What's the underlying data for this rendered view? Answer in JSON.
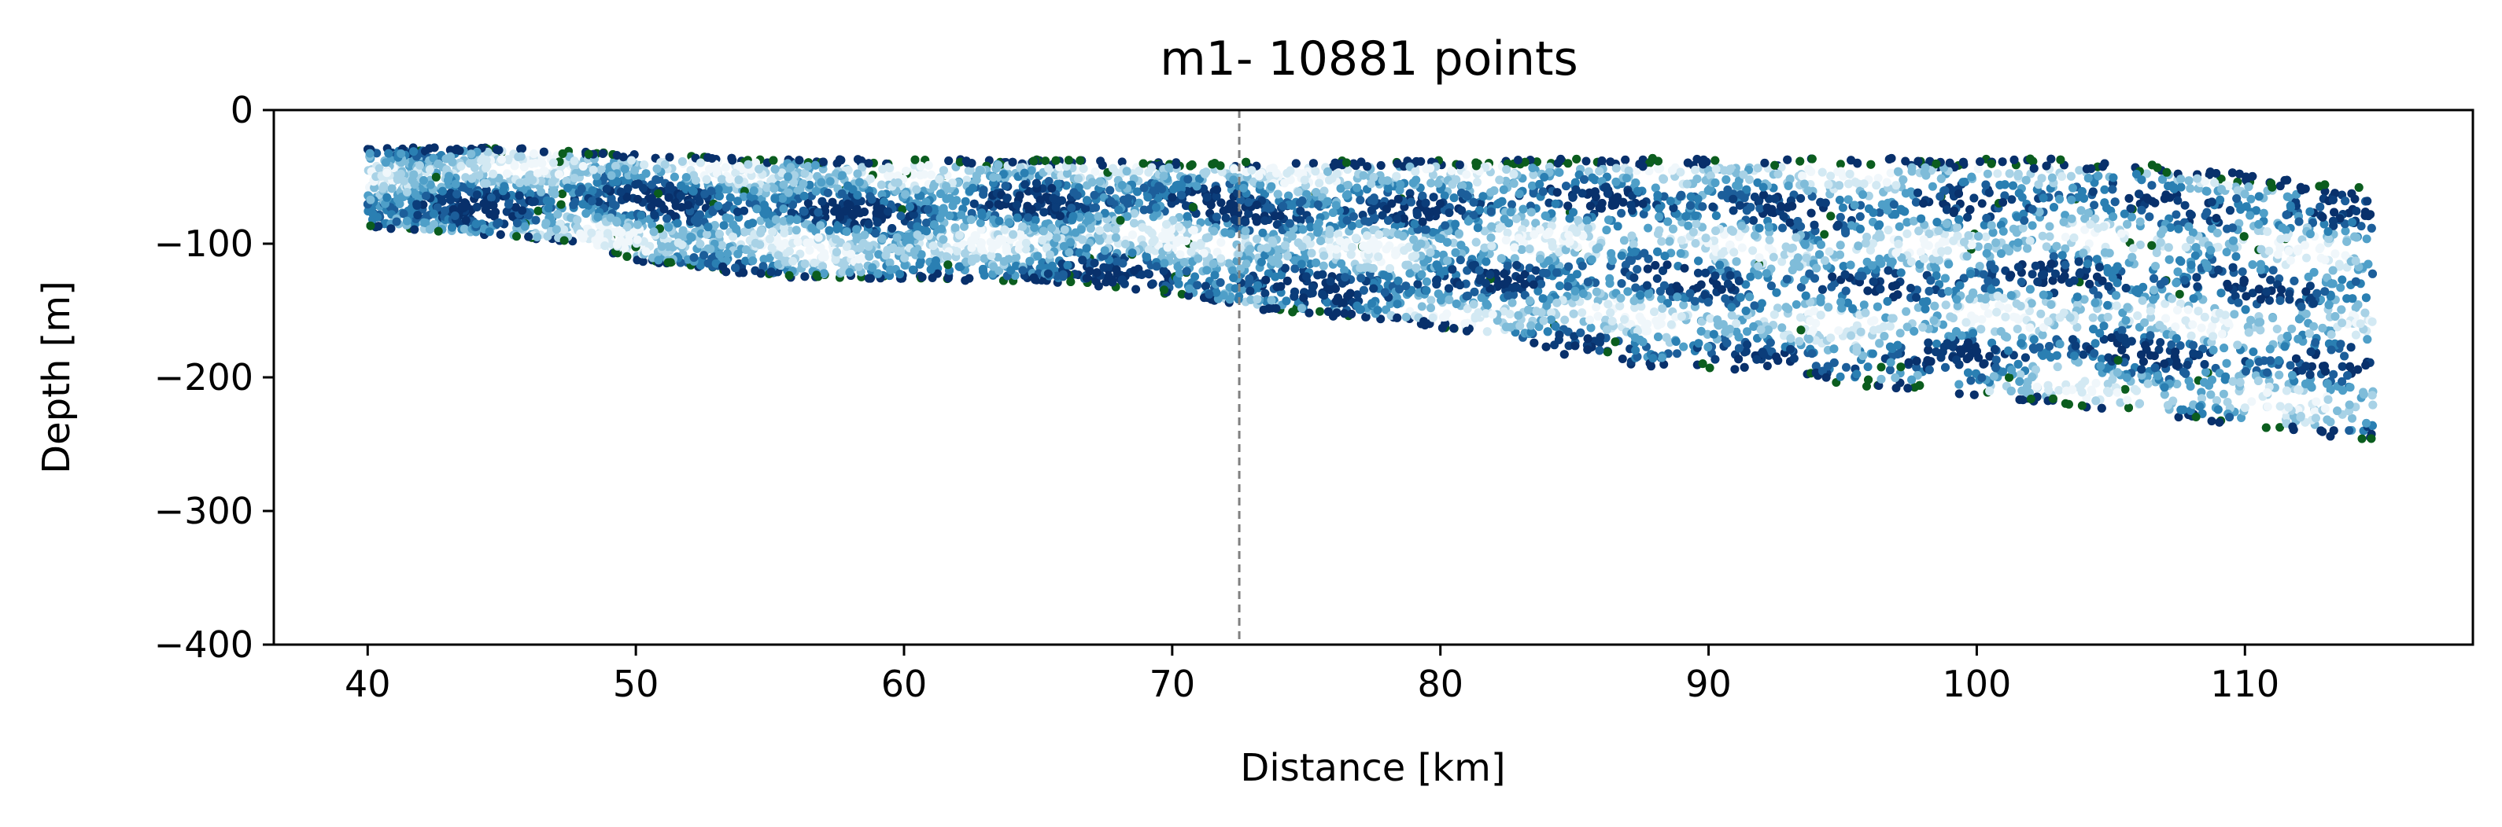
{
  "chart_data": {
    "type": "scatter",
    "title": "m1- 10881 points",
    "xlabel": "Distance [km]",
    "ylabel": "Depth [m]",
    "xlim": [
      36.5,
      118.5
    ],
    "ylim": [
      -400,
      0
    ],
    "x_ticks": [
      40,
      50,
      60,
      70,
      80,
      90,
      100,
      110
    ],
    "y_ticks": [
      0,
      -100,
      -200,
      -300,
      -400
    ],
    "x_tick_labels": [
      "40",
      "50",
      "60",
      "70",
      "80",
      "90",
      "100",
      "110"
    ],
    "y_tick_labels": [
      "0",
      "−100",
      "−200",
      "−300",
      "−400"
    ],
    "grid": false,
    "legend": "none",
    "point_count": 10881,
    "reference_line": {
      "x": 72.5,
      "style": "dashed",
      "color": "#808080"
    },
    "colors": {
      "palette": [
        "#08306b",
        "#0b3d7a",
        "#1c5e9a",
        "#2a7fb2",
        "#4f9fc8",
        "#7fbcd9",
        "#a8d2e6",
        "#d3e9f3",
        "#f0f7fb"
      ],
      "accent_green": "#0b5d1e"
    },
    "section": {
      "x_start": 40,
      "x_end": 114.8,
      "top_profile": [
        [
          40,
          -28
        ],
        [
          45,
          -28
        ],
        [
          50,
          -33
        ],
        [
          55,
          -36
        ],
        [
          60,
          -37
        ],
        [
          65,
          -37
        ],
        [
          70,
          -39
        ],
        [
          75,
          -38
        ],
        [
          80,
          -37
        ],
        [
          85,
          -36
        ],
        [
          90,
          -36
        ],
        [
          95,
          -36
        ],
        [
          100,
          -36
        ],
        [
          105,
          -37
        ],
        [
          108,
          -42
        ],
        [
          112,
          -53
        ],
        [
          114.8,
          -58
        ]
      ],
      "bottom_profile": [
        [
          40,
          -88
        ],
        [
          45,
          -95
        ],
        [
          48,
          -100
        ],
        [
          50,
          -113
        ],
        [
          55,
          -125
        ],
        [
          60,
          -127
        ],
        [
          65,
          -128
        ],
        [
          68,
          -133
        ],
        [
          70,
          -138
        ],
        [
          72.5,
          -148
        ],
        [
          75,
          -153
        ],
        [
          78,
          -157
        ],
        [
          80,
          -163
        ],
        [
          83,
          -175
        ],
        [
          85,
          -185
        ],
        [
          87,
          -193
        ],
        [
          90,
          -193
        ],
        [
          93,
          -196
        ],
        [
          95,
          -205
        ],
        [
          100,
          -215
        ],
        [
          105,
          -225
        ],
        [
          110,
          -237
        ],
        [
          114.8,
          -248
        ]
      ]
    }
  }
}
